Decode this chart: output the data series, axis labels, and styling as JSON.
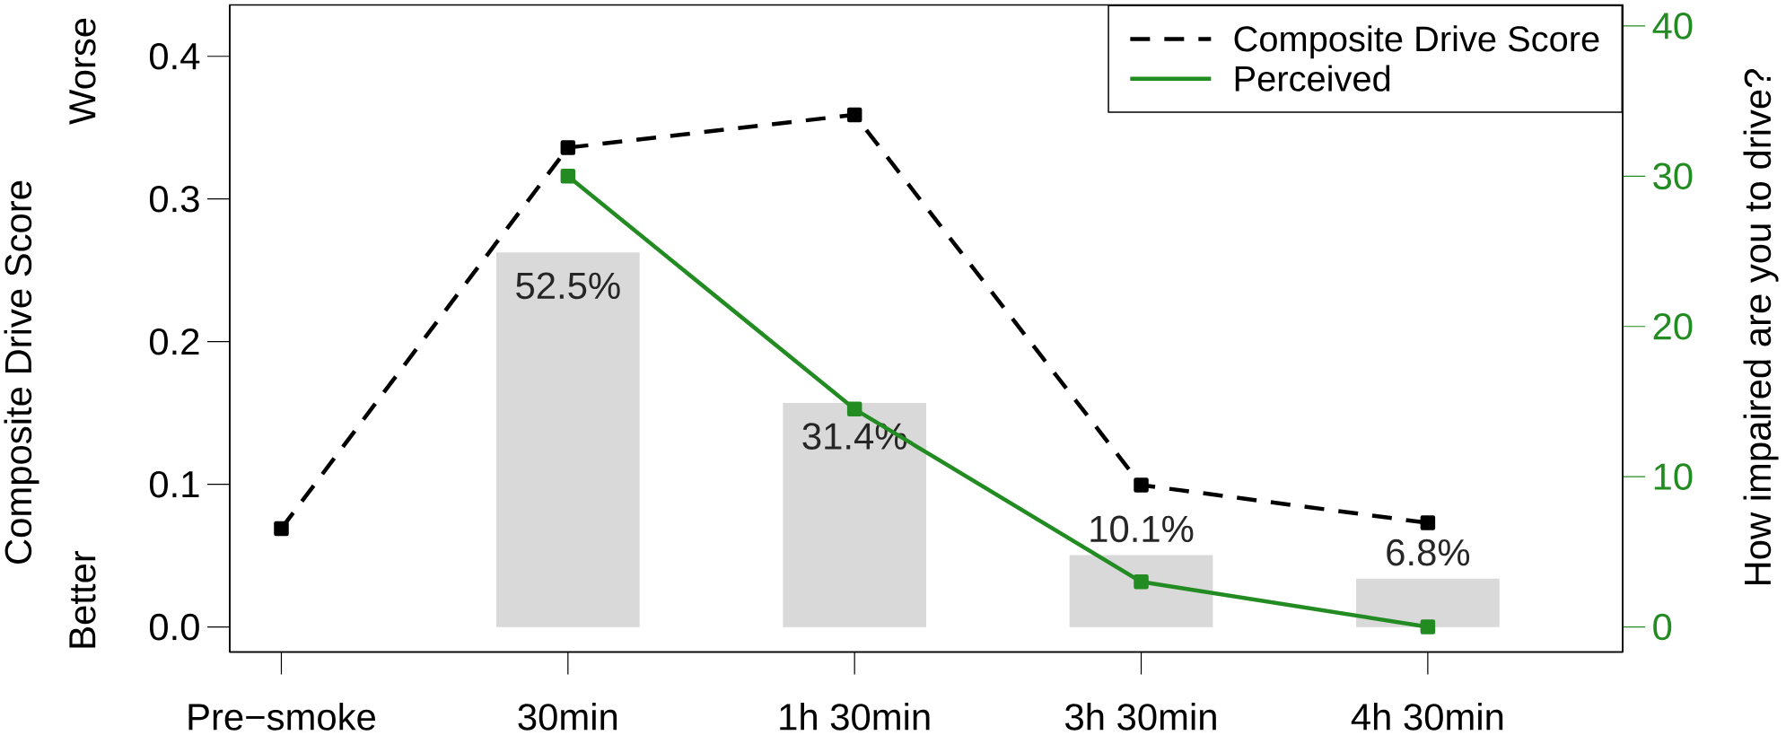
{
  "chart_data": [
    {
      "type": "bar",
      "categories": [
        null,
        null,
        null,
        null
      ],
      "color": "#d9d9d9",
      "values": [
        52.5,
        31.4,
        10.1,
        6.8
      ],
      "value_labels": [
        "52.5%",
        "31.4%",
        "10.1%",
        "6.8%"
      ]
    },
    {
      "type": "line",
      "categories": [
        "Pre−smoke",
        "30min",
        "1h 30min",
        "3h 30min",
        "4h 30min"
      ],
      "ylabel": "Composite Drive Score",
      "y2label": "How impaired are you to drive?",
      "annotations": [
        "Worse",
        "Better"
      ],
      "ylim": [
        -0.0175,
        0.436
      ],
      "yticks": [
        {
          "value": 0,
          "label": "0.0"
        },
        {
          "value": 0.1,
          "label": "0.1"
        },
        {
          "value": 0.2,
          "label": "0.2"
        },
        {
          "value": 0.3,
          "label": "0.3"
        },
        {
          "value": 0.4,
          "label": "0.4"
        }
      ],
      "y2lim": [
        -1.67,
        41.4
      ],
      "y2ticks": [
        0,
        10,
        20,
        30,
        40
      ],
      "legend": "top right",
      "marker": "square",
      "series": [
        {
          "name": "Composite Drive Score",
          "color": "#000000",
          "line_style": "dashed",
          "values": [
            0.069,
            0.336,
            0.359,
            0.0995,
            0.073
          ]
        },
        {
          "name": "Perceived",
          "color": "#228b22",
          "axis": "y2",
          "line_style": "solid",
          "values": [
            null,
            30,
            14.5,
            3,
            0
          ]
        }
      ]
    }
  ]
}
